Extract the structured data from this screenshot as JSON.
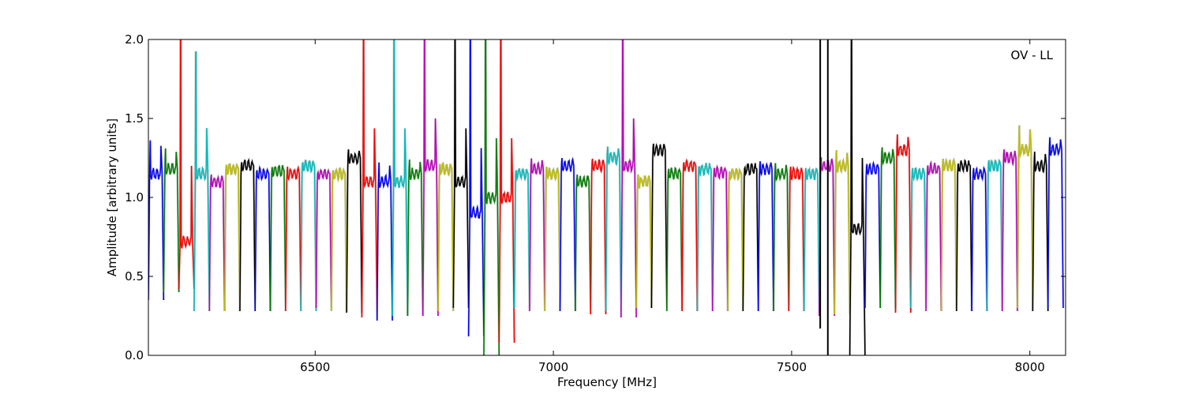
{
  "chart_data": {
    "type": "line",
    "annotation": "OV - LL",
    "xlabel": "Frequency [MHz]",
    "ylabel": "Amplitude [arbitrary units]",
    "xlim": [
      6150,
      8075
    ],
    "ylim": [
      0.0,
      2.0
    ],
    "x_ticks": [
      6500,
      7000,
      7500,
      8000
    ],
    "y_ticks": [
      0.0,
      0.5,
      1.0,
      1.5,
      2.0
    ],
    "x_tick_labels": [
      "6500",
      "7000",
      "7500",
      "8000"
    ],
    "y_tick_labels": [
      "0.0",
      "0.5",
      "1.0",
      "1.5",
      "2.0"
    ],
    "grid": false,
    "legend": "none",
    "series_colors": [
      "#0000ff",
      "#008000",
      "#ff0000",
      "#00bfbf",
      "#bf00bf",
      "#bfbf00",
      "#000000"
    ],
    "background_series_color": "#bfbfbf",
    "channel_width_mhz": 32,
    "channels": [
      {
        "start": 6150,
        "color": "#0000ff",
        "peak": 1.62,
        "plateau": 1.15,
        "min": 0.35
      },
      {
        "start": 6182,
        "color": "#008000",
        "peak": 1.47,
        "plateau": 1.18,
        "min": 0.4
      },
      {
        "start": 6214,
        "color": "#ff0000",
        "peak": 2.0,
        "plateau": 0.72,
        "min": 0.42
      },
      {
        "start": 6246,
        "color": "#00bfbf",
        "peak": 1.92,
        "plateau": 1.15,
        "min": 0.28
      },
      {
        "start": 6278,
        "color": "#bf00bf",
        "peak": 1.2,
        "plateau": 1.1,
        "min": 0.28
      },
      {
        "start": 6310,
        "color": "#bfbf00",
        "peak": 1.24,
        "plateau": 1.18,
        "min": 0.28
      },
      {
        "start": 6342,
        "color": "#000000",
        "peak": 1.25,
        "plateau": 1.2,
        "min": 0.28
      },
      {
        "start": 6374,
        "color": "#0000ff",
        "peak": 1.2,
        "plateau": 1.15,
        "min": 0.28
      },
      {
        "start": 6406,
        "color": "#008000",
        "peak": 1.22,
        "plateau": 1.17,
        "min": 0.28
      },
      {
        "start": 6438,
        "color": "#ff0000",
        "peak": 1.25,
        "plateau": 1.15,
        "min": 0.28
      },
      {
        "start": 6470,
        "color": "#00bfbf",
        "peak": 1.25,
        "plateau": 1.2,
        "min": 0.28
      },
      {
        "start": 6502,
        "color": "#bf00bf",
        "peak": 1.17,
        "plateau": 1.15,
        "min": 0.3
      },
      {
        "start": 6534,
        "color": "#bfbf00",
        "peak": 1.2,
        "plateau": 1.15,
        "min": 0.28
      },
      {
        "start": 6566,
        "color": "#000000",
        "peak": 1.37,
        "plateau": 1.25,
        "min": 0.27
      },
      {
        "start": 6598,
        "color": "#ff0000",
        "peak": 2.0,
        "plateau": 1.1,
        "min": 0.24
      },
      {
        "start": 6630,
        "color": "#0000ff",
        "peak": 1.37,
        "plateau": 1.1,
        "min": 0.22
      },
      {
        "start": 6662,
        "color": "#00bfbf",
        "peak": 2.0,
        "plateau": 1.1,
        "min": 0.25
      },
      {
        "start": 6694,
        "color": "#008000",
        "peak": 1.35,
        "plateau": 1.15,
        "min": 0.25
      },
      {
        "start": 6726,
        "color": "#bf00bf",
        "peak": 2.0,
        "plateau": 1.2,
        "min": 0.25
      },
      {
        "start": 6758,
        "color": "#bfbf00",
        "peak": 1.25,
        "plateau": 1.18,
        "min": 0.28
      },
      {
        "start": 6790,
        "color": "#000000",
        "peak": 2.0,
        "plateau": 1.1,
        "min": 0.3
      },
      {
        "start": 6822,
        "color": "#0000ff",
        "peak": 2.0,
        "plateau": 0.9,
        "min": 0.12
      },
      {
        "start": 6854,
        "color": "#008000",
        "peak": 2.0,
        "plateau": 1.0,
        "min": 0.0
      },
      {
        "start": 6886,
        "color": "#ff0000",
        "peak": 2.0,
        "plateau": 1.0,
        "min": 0.08
      },
      {
        "start": 6918,
        "color": "#00bfbf",
        "peak": 1.2,
        "plateau": 1.15,
        "min": 0.3
      },
      {
        "start": 6950,
        "color": "#bf00bf",
        "peak": 1.33,
        "plateau": 1.18,
        "min": 0.28
      },
      {
        "start": 6982,
        "color": "#bfbf00",
        "peak": 1.25,
        "plateau": 1.15,
        "min": 0.28
      },
      {
        "start": 7014,
        "color": "#0000ff",
        "peak": 1.31,
        "plateau": 1.2,
        "min": 0.28
      },
      {
        "start": 7046,
        "color": "#008000",
        "peak": 1.2,
        "plateau": 1.1,
        "min": 0.28
      },
      {
        "start": 7078,
        "color": "#ff0000",
        "peak": 1.3,
        "plateau": 1.2,
        "min": 0.26
      },
      {
        "start": 7110,
        "color": "#00bfbf",
        "peak": 1.41,
        "plateau": 1.25,
        "min": 0.28
      },
      {
        "start": 7142,
        "color": "#bf00bf",
        "peak": 2.0,
        "plateau": 1.2,
        "min": 0.24
      },
      {
        "start": 7174,
        "color": "#bfbf00",
        "peak": 1.2,
        "plateau": 1.1,
        "min": 0.3
      },
      {
        "start": 7206,
        "color": "#000000",
        "peak": 1.39,
        "plateau": 1.3,
        "min": 0.3
      },
      {
        "start": 7238,
        "color": "#008000",
        "peak": 1.22,
        "plateau": 1.15,
        "min": 0.28
      },
      {
        "start": 7270,
        "color": "#ff0000",
        "peak": 1.25,
        "plateau": 1.2,
        "min": 0.28
      },
      {
        "start": 7302,
        "color": "#00bfbf",
        "peak": 1.22,
        "plateau": 1.18,
        "min": 0.28
      },
      {
        "start": 7334,
        "color": "#bf00bf",
        "peak": 1.22,
        "plateau": 1.16,
        "min": 0.28
      },
      {
        "start": 7366,
        "color": "#bfbf00",
        "peak": 1.18,
        "plateau": 1.15,
        "min": 0.28
      },
      {
        "start": 7398,
        "color": "#000000",
        "peak": 1.2,
        "plateau": 1.18,
        "min": 0.28
      },
      {
        "start": 7430,
        "color": "#0000ff",
        "peak": 1.29,
        "plateau": 1.18,
        "min": 0.28
      },
      {
        "start": 7462,
        "color": "#008000",
        "peak": 1.3,
        "plateau": 1.15,
        "min": 0.28
      },
      {
        "start": 7494,
        "color": "#ff0000",
        "peak": 1.25,
        "plateau": 1.15,
        "min": 0.28
      },
      {
        "start": 7526,
        "color": "#00bfbf",
        "peak": 1.23,
        "plateau": 1.15,
        "min": 0.28
      },
      {
        "start": 7558,
        "color": "#bf00bf",
        "peak": 1.32,
        "plateau": 1.2,
        "min": 0.25
      },
      {
        "start": 7590,
        "color": "#bfbf00",
        "peak": 1.42,
        "plateau": 1.2,
        "min": 0.26
      },
      {
        "start": 7622,
        "color": "#000000",
        "peak": 2.0,
        "plateau": 0.8,
        "min": 0.0
      },
      {
        "start": 7654,
        "color": "#0000ff",
        "peak": 1.25,
        "plateau": 1.18,
        "min": 0.3
      },
      {
        "start": 7686,
        "color": "#008000",
        "peak": 1.4,
        "plateau": 1.25,
        "min": 0.3
      },
      {
        "start": 7718,
        "color": "#ff0000",
        "peak": 1.52,
        "plateau": 1.3,
        "min": 0.27
      },
      {
        "start": 7750,
        "color": "#00bfbf",
        "peak": 1.23,
        "plateau": 1.15,
        "min": 0.3
      },
      {
        "start": 7782,
        "color": "#bf00bf",
        "peak": 1.23,
        "plateau": 1.18,
        "min": 0.28
      },
      {
        "start": 7814,
        "color": "#bfbf00",
        "peak": 1.3,
        "plateau": 1.2,
        "min": 0.28
      },
      {
        "start": 7846,
        "color": "#000000",
        "peak": 1.23,
        "plateau": 1.2,
        "min": 0.28
      },
      {
        "start": 7878,
        "color": "#0000ff",
        "peak": 1.23,
        "plateau": 1.15,
        "min": 0.28
      },
      {
        "start": 7910,
        "color": "#00bfbf",
        "peak": 1.28,
        "plateau": 1.2,
        "min": 0.28
      },
      {
        "start": 7942,
        "color": "#bf00bf",
        "peak": 1.37,
        "plateau": 1.25,
        "min": 0.28
      },
      {
        "start": 7974,
        "color": "#bfbf00",
        "peak": 1.65,
        "plateau": 1.3,
        "min": 0.3
      },
      {
        "start": 8006,
        "color": "#000000",
        "peak": 1.4,
        "plateau": 1.2,
        "min": 0.28
      },
      {
        "start": 8038,
        "color": "#0000ff",
        "peak": 1.48,
        "plateau": 1.3,
        "min": 0.3
      }
    ],
    "spikes": [
      {
        "x": 7560,
        "ymin": 0.17,
        "ymax": 2.0,
        "color": "#000000"
      },
      {
        "x": 7576,
        "ymin": 0.0,
        "ymax": 2.0,
        "color": "#000000"
      }
    ]
  }
}
